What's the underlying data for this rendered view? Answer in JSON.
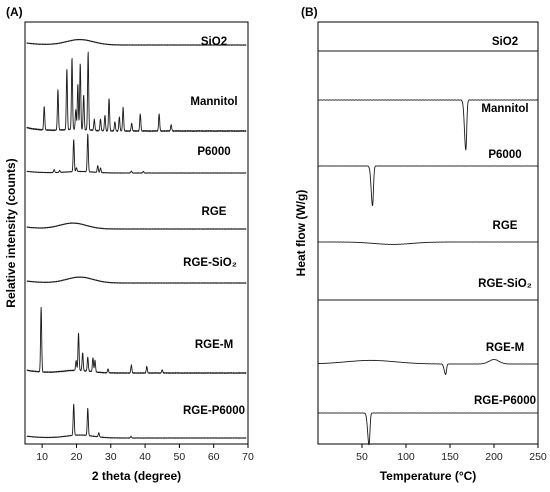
{
  "chart_data": [
    {
      "type": "line",
      "panel_label": "(A)",
      "xlabel": "2 theta (degree)",
      "ylabel": "Relative intensity (counts)",
      "xlim": [
        5,
        70
      ],
      "xticks": [
        10,
        20,
        30,
        40,
        50,
        60,
        70
      ],
      "y_values": "relative (no numeric y ticks); traces vertically offset",
      "series": [
        {
          "name": "SiO2",
          "kind": "broad_halo",
          "halo_center": 21,
          "halo_height": 0.12,
          "peaks": []
        },
        {
          "name": "Mannitol",
          "kind": "crystalline",
          "halo_center": 20,
          "halo_height": 0.02,
          "peaks": [
            [
              10.6,
              0.3
            ],
            [
              14.6,
              0.52
            ],
            [
              17.2,
              0.78
            ],
            [
              18.7,
              0.92
            ],
            [
              19.8,
              0.25
            ],
            [
              20.4,
              0.58
            ],
            [
              21.1,
              0.85
            ],
            [
              22.1,
              0.45
            ],
            [
              23.4,
              1.0
            ],
            [
              25.2,
              0.14
            ],
            [
              27.0,
              0.15
            ],
            [
              28.3,
              0.2
            ],
            [
              29.5,
              0.42
            ],
            [
              31.2,
              0.12
            ],
            [
              32.5,
              0.18
            ],
            [
              33.6,
              0.3
            ],
            [
              36.1,
              0.1
            ],
            [
              38.6,
              0.22
            ],
            [
              44.1,
              0.22
            ],
            [
              47.6,
              0.08
            ]
          ]
        },
        {
          "name": "P6000",
          "kind": "crystalline",
          "halo_center": 21,
          "halo_height": 0.04,
          "peaks": [
            [
              13.5,
              0.08
            ],
            [
              15.1,
              0.05
            ],
            [
              19.2,
              0.85
            ],
            [
              20.0,
              0.1
            ],
            [
              23.3,
              1.0
            ],
            [
              26.2,
              0.18
            ],
            [
              27.0,
              0.12
            ],
            [
              36.0,
              0.05
            ],
            [
              39.5,
              0.04
            ]
          ]
        },
        {
          "name": "RGE",
          "kind": "broad_halo",
          "halo_center": 19,
          "halo_height": 0.13,
          "peaks": []
        },
        {
          "name": "RGE-SiO₂",
          "kind": "broad_halo",
          "halo_center": 21,
          "halo_height": 0.13,
          "peaks": []
        },
        {
          "name": "RGE-M",
          "kind": "crystalline",
          "halo_center": 20,
          "halo_height": 0.04,
          "peaks": [
            [
              9.7,
              1.0
            ],
            [
              19.9,
              0.15
            ],
            [
              20.6,
              0.58
            ],
            [
              21.8,
              0.28
            ],
            [
              23.3,
              0.22
            ],
            [
              24.8,
              0.22
            ],
            [
              25.4,
              0.18
            ],
            [
              29.2,
              0.06
            ],
            [
              36.0,
              0.12
            ],
            [
              40.5,
              0.1
            ],
            [
              45.0,
              0.05
            ]
          ]
        },
        {
          "name": "RGE-P6000",
          "kind": "crystalline",
          "halo_center": 21,
          "halo_height": 0.07,
          "peaks": [
            [
              19.2,
              0.75
            ],
            [
              23.3,
              0.65
            ],
            [
              26.5,
              0.1
            ],
            [
              35.9,
              0.04
            ]
          ]
        }
      ]
    },
    {
      "type": "line",
      "panel_label": "(B)",
      "xlabel": "Temperature (°C)",
      "ylabel": "Heat flow (W/g)",
      "xlim": [
        0,
        250
      ],
      "xticks": [
        50,
        100,
        150,
        200,
        250
      ],
      "y_values": "relative (no numeric y ticks); traces vertically offset",
      "series": [
        {
          "name": "SiO2",
          "events": []
        },
        {
          "name": "Mannitol",
          "events": [
            {
              "type": "endotherm",
              "temp": 168,
              "depth": 1.0
            }
          ]
        },
        {
          "name": "P6000",
          "events": [
            {
              "type": "endotherm",
              "temp": 62,
              "depth": 1.0
            }
          ]
        },
        {
          "name": "RGE",
          "events": [
            {
              "type": "broad_dip",
              "temp": 85,
              "depth": 0.08
            }
          ]
        },
        {
          "name": "RGE-SiO₂",
          "events": []
        },
        {
          "name": "RGE-M",
          "events": [
            {
              "type": "endotherm",
              "temp": 145,
              "depth": 0.35
            },
            {
              "type": "exotherm_bump",
              "temp": 200,
              "depth": 0.15
            }
          ]
        },
        {
          "name": "RGE-P6000",
          "events": [
            {
              "type": "endotherm",
              "temp": 58,
              "depth": 1.0
            }
          ]
        }
      ]
    }
  ]
}
